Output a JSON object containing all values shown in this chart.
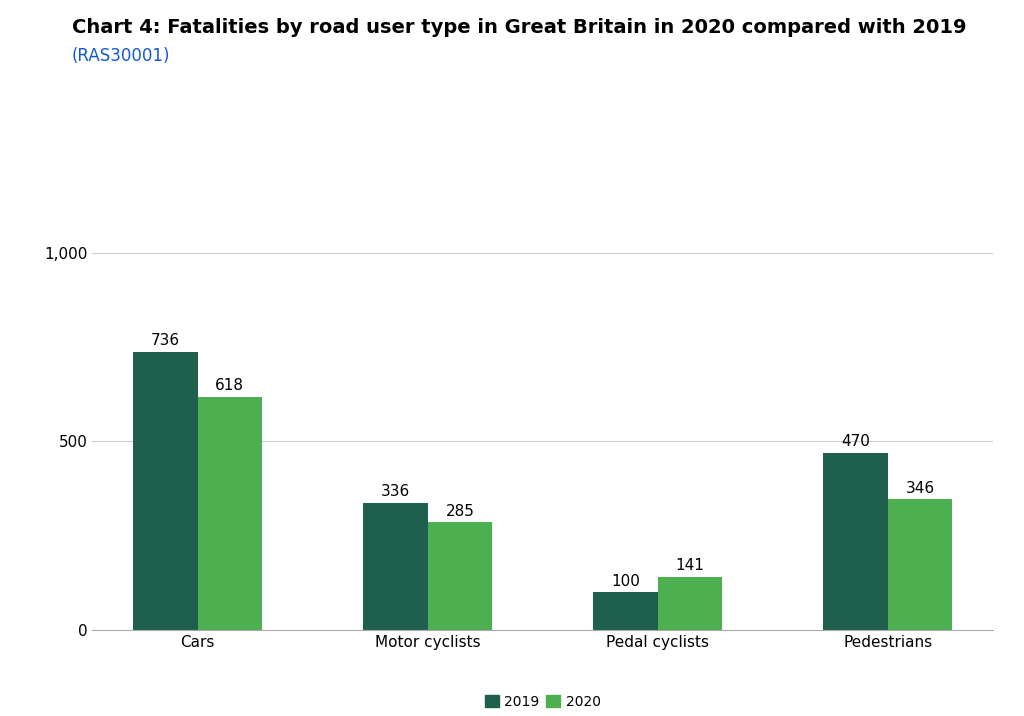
{
  "title": "Chart 4: Fatalities by road user type in Great Britain in 2020 compared with 2019",
  "subtitle": "(RAS30001)",
  "categories": [
    "Cars",
    "Motor cyclists",
    "Pedal cyclists",
    "Pedestrians"
  ],
  "values_2019": [
    736,
    336,
    100,
    470
  ],
  "values_2020": [
    618,
    285,
    141,
    346
  ],
  "color_2019": "#1e5f4e",
  "color_2020": "#4caf50",
  "ylim": [
    0,
    1100
  ],
  "yticks": [
    0,
    500,
    1000
  ],
  "ytick_labels": [
    "0",
    "500",
    "1,000"
  ],
  "legend_labels": [
    "2019",
    "2020"
  ],
  "bar_width": 0.28,
  "background_color": "#ffffff",
  "title_fontsize": 14,
  "subtitle_fontsize": 12,
  "label_fontsize": 11,
  "tick_fontsize": 11,
  "value_fontsize": 11,
  "legend_fontsize": 10
}
